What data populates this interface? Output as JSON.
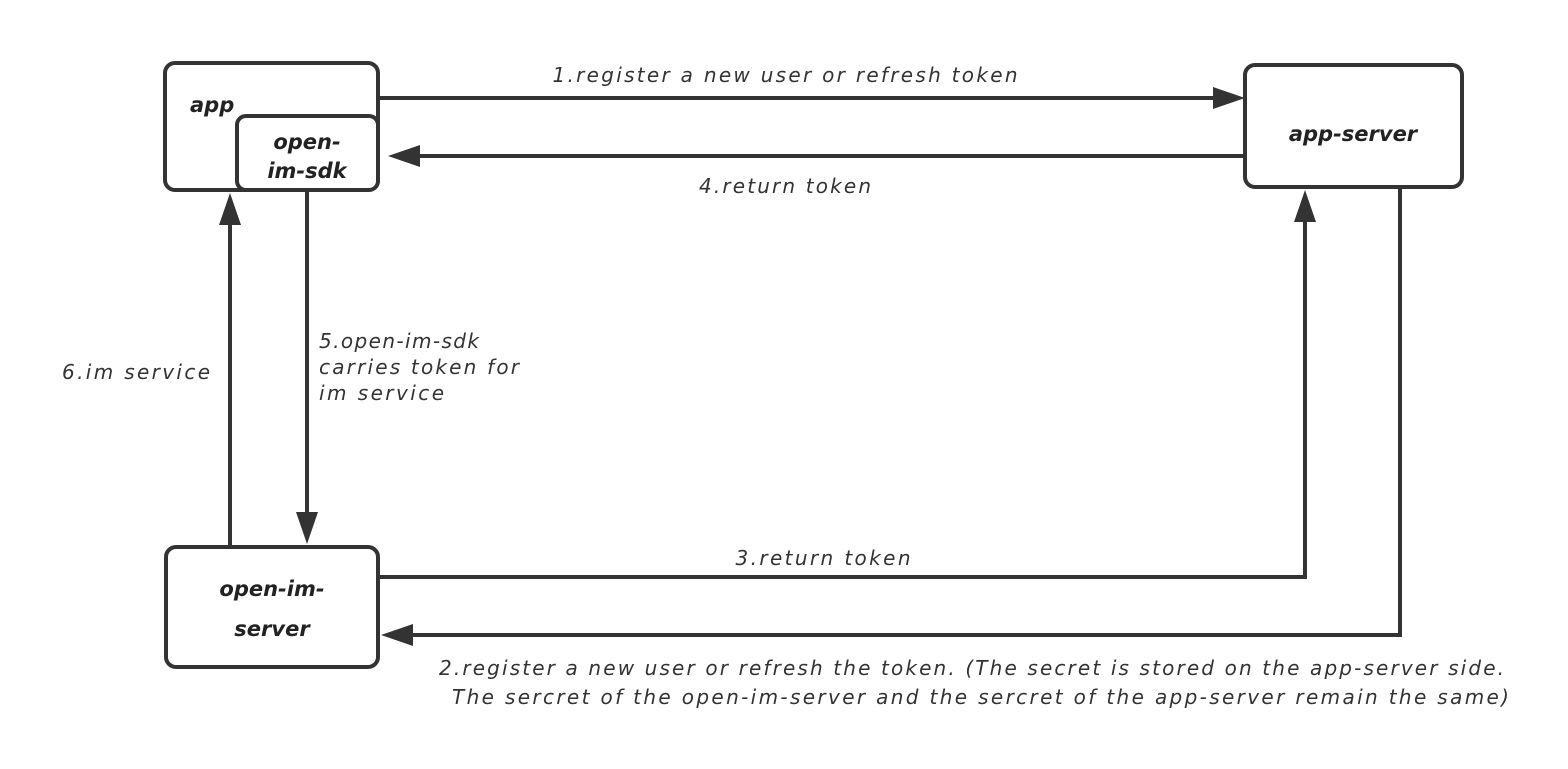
{
  "nodes": {
    "app": "app",
    "sdk_line1": "open-",
    "sdk_line2": "im-sdk",
    "app_server": "app-server",
    "im_server_line1": "open-im-",
    "im_server_line2": "server"
  },
  "edges": {
    "e1": "1.register a new user or refresh token",
    "e2_line1": "2.register a new user or refresh the token. (The secret is stored on the app-server side.",
    "e2_line2": "The sercret of the open-im-server and the sercret of the app-server remain the same)",
    "e3": "3.return token",
    "e4": "4.return token",
    "e5_line1": "5.open-im-sdk",
    "e5_line2": "carries token for",
    "e5_line3": "im service",
    "e6": "6.im service"
  },
  "colors": {
    "stroke": "#333333",
    "background": "#ffffff"
  }
}
